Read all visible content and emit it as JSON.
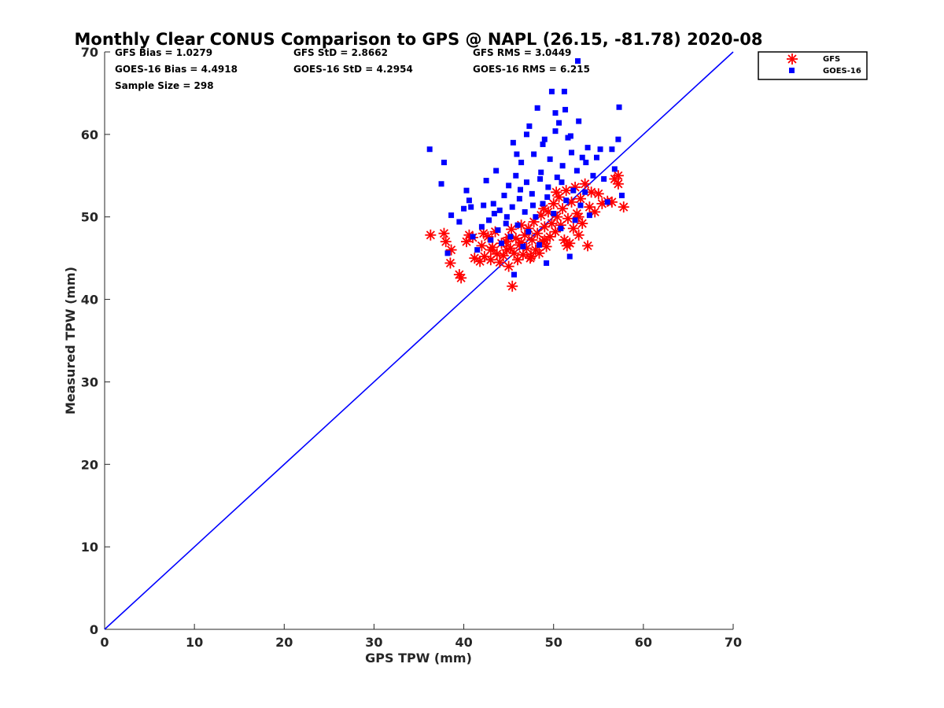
{
  "chart_data": {
    "type": "scatter",
    "title": "Monthly Clear CONUS Comparison to GPS @ NAPL (26.15, -81.78) 2020-08",
    "xlabel": "GPS TPW (mm)",
    "ylabel": "Measured TPW (mm)",
    "xlim": [
      0,
      70
    ],
    "ylim": [
      0,
      70
    ],
    "xticks": [
      "0",
      "10",
      "20",
      "30",
      "40",
      "50",
      "60",
      "70"
    ],
    "yticks": [
      "0",
      "10",
      "20",
      "30",
      "40",
      "50",
      "60",
      "70"
    ],
    "grid": false,
    "legend_position": "top-right outside",
    "stats": [
      [
        "GFS Bias = 1.0279",
        "GFS StD = 2.8662",
        "GFS RMS = 3.0449"
      ],
      [
        "GOES-16 Bias = 4.4918",
        "GOES-16 StD = 4.2954",
        "GOES-16 RMS = 6.215"
      ],
      [
        "Sample Size = 298"
      ]
    ],
    "reference_line": {
      "x": [
        0,
        70
      ],
      "y": [
        0,
        70
      ],
      "color": "#0000ff"
    },
    "series": [
      {
        "name": "GFS",
        "marker": "asterisk",
        "color": "#ff0000",
        "points": [
          [
            36.3,
            47.8
          ],
          [
            37.8,
            48.0
          ],
          [
            38.0,
            47.0
          ],
          [
            38.6,
            46.0
          ],
          [
            38.5,
            44.4
          ],
          [
            39.5,
            43.0
          ],
          [
            39.7,
            42.6
          ],
          [
            40.3,
            47.0
          ],
          [
            40.6,
            47.8
          ],
          [
            41.0,
            47.5
          ],
          [
            41.2,
            45.0
          ],
          [
            41.8,
            44.6
          ],
          [
            42.0,
            46.5
          ],
          [
            42.3,
            45.2
          ],
          [
            42.7,
            47.6
          ],
          [
            43.0,
            44.8
          ],
          [
            43.2,
            46.3
          ],
          [
            43.5,
            48.2
          ],
          [
            43.7,
            45.5
          ],
          [
            44.0,
            44.5
          ],
          [
            44.2,
            46.8
          ],
          [
            44.4,
            45.3
          ],
          [
            44.7,
            47.0
          ],
          [
            45.0,
            44.0
          ],
          [
            45.2,
            46.2
          ],
          [
            45.3,
            48.5
          ],
          [
            45.4,
            41.6
          ],
          [
            45.6,
            45.6
          ],
          [
            45.8,
            47.4
          ],
          [
            46.0,
            44.8
          ],
          [
            46.2,
            46.6
          ],
          [
            46.4,
            49.0
          ],
          [
            46.6,
            45.4
          ],
          [
            46.8,
            47.8
          ],
          [
            47.0,
            46.2
          ],
          [
            47.2,
            48.6
          ],
          [
            47.4,
            45.0
          ],
          [
            47.6,
            47.2
          ],
          [
            47.8,
            49.4
          ],
          [
            48.0,
            46.0
          ],
          [
            48.2,
            48.0
          ],
          [
            48.4,
            45.6
          ],
          [
            48.6,
            50.2
          ],
          [
            48.8,
            47.0
          ],
          [
            49.0,
            48.8
          ],
          [
            49.2,
            46.4
          ],
          [
            49.4,
            50.6
          ],
          [
            49.6,
            47.6
          ],
          [
            49.8,
            49.2
          ],
          [
            50.0,
            51.6
          ],
          [
            50.2,
            48.2
          ],
          [
            50.4,
            50.0
          ],
          [
            50.6,
            52.4
          ],
          [
            50.8,
            49.0
          ],
          [
            51.0,
            51.0
          ],
          [
            51.2,
            47.2
          ],
          [
            51.4,
            53.2
          ],
          [
            51.6,
            49.8
          ],
          [
            51.8,
            46.8
          ],
          [
            52.0,
            51.8
          ],
          [
            52.2,
            48.6
          ],
          [
            52.4,
            53.6
          ],
          [
            52.6,
            50.4
          ],
          [
            52.8,
            47.8
          ],
          [
            53.0,
            52.2
          ],
          [
            53.2,
            49.2
          ],
          [
            53.5,
            54.0
          ],
          [
            53.8,
            46.5
          ],
          [
            54.0,
            51.2
          ],
          [
            54.2,
            53.0
          ],
          [
            54.6,
            50.6
          ],
          [
            55.0,
            52.8
          ],
          [
            55.4,
            51.6
          ],
          [
            56.0,
            51.9
          ],
          [
            56.5,
            51.8
          ],
          [
            56.8,
            54.6
          ],
          [
            57.2,
            54.0
          ],
          [
            57.2,
            55.0
          ],
          [
            57.8,
            51.2
          ],
          [
            47.5,
            45.2
          ],
          [
            44.8,
            46.0
          ],
          [
            46.4,
            46.9
          ],
          [
            49.0,
            47.2
          ],
          [
            51.5,
            46.5
          ],
          [
            43.0,
            46.0
          ],
          [
            50.3,
            53.0
          ],
          [
            48.9,
            51.0
          ],
          [
            45.0,
            47.5
          ],
          [
            42.2,
            48.0
          ],
          [
            52.8,
            50.0
          ]
        ]
      },
      {
        "name": "GOES-16",
        "marker": "square",
        "color": "#0000ff",
        "points": [
          [
            36.2,
            58.2
          ],
          [
            37.5,
            54.0
          ],
          [
            37.8,
            56.6
          ],
          [
            38.2,
            45.6
          ],
          [
            38.6,
            50.2
          ],
          [
            39.5,
            49.4
          ],
          [
            40.0,
            51.0
          ],
          [
            40.3,
            53.2
          ],
          [
            40.6,
            52.0
          ],
          [
            41.0,
            47.6
          ],
          [
            41.5,
            46.0
          ],
          [
            42.0,
            48.8
          ],
          [
            42.2,
            51.4
          ],
          [
            42.5,
            54.4
          ],
          [
            42.8,
            49.6
          ],
          [
            43.0,
            47.2
          ],
          [
            43.3,
            51.6
          ],
          [
            43.6,
            55.6
          ],
          [
            43.8,
            48.4
          ],
          [
            44.0,
            50.8
          ],
          [
            44.2,
            46.8
          ],
          [
            44.5,
            52.6
          ],
          [
            44.7,
            49.2
          ],
          [
            45.0,
            53.8
          ],
          [
            45.2,
            47.6
          ],
          [
            45.4,
            51.2
          ],
          [
            45.5,
            59.0
          ],
          [
            45.6,
            43.0
          ],
          [
            45.8,
            55.0
          ],
          [
            46.0,
            49.0
          ],
          [
            46.2,
            52.2
          ],
          [
            46.4,
            56.6
          ],
          [
            46.6,
            46.4
          ],
          [
            46.8,
            50.6
          ],
          [
            47.0,
            54.2
          ],
          [
            47.2,
            48.2
          ],
          [
            47.3,
            61.0
          ],
          [
            47.6,
            52.8
          ],
          [
            47.8,
            57.6
          ],
          [
            48.0,
            50.0
          ],
          [
            48.2,
            63.2
          ],
          [
            48.4,
            46.6
          ],
          [
            48.6,
            55.4
          ],
          [
            48.8,
            51.6
          ],
          [
            49.0,
            59.4
          ],
          [
            49.2,
            44.4
          ],
          [
            49.4,
            53.6
          ],
          [
            49.6,
            57.0
          ],
          [
            49.8,
            65.2
          ],
          [
            50.0,
            50.4
          ],
          [
            50.2,
            60.4
          ],
          [
            50.4,
            54.8
          ],
          [
            50.6,
            61.4
          ],
          [
            50.8,
            48.6
          ],
          [
            51.0,
            56.2
          ],
          [
            51.2,
            65.2
          ],
          [
            51.4,
            52.0
          ],
          [
            51.6,
            59.6
          ],
          [
            51.8,
            45.2
          ],
          [
            52.0,
            57.8
          ],
          [
            52.2,
            53.2
          ],
          [
            52.4,
            49.6
          ],
          [
            52.6,
            55.6
          ],
          [
            52.8,
            61.6
          ],
          [
            53.0,
            51.4
          ],
          [
            53.2,
            57.2
          ],
          [
            53.5,
            53.0
          ],
          [
            53.8,
            58.4
          ],
          [
            54.0,
            50.2
          ],
          [
            54.4,
            55.0
          ],
          [
            54.8,
            57.2
          ],
          [
            55.2,
            58.2
          ],
          [
            55.6,
            54.6
          ],
          [
            56.0,
            51.8
          ],
          [
            56.5,
            58.2
          ],
          [
            56.8,
            55.8
          ],
          [
            57.2,
            59.4
          ],
          [
            57.3,
            63.3
          ],
          [
            57.6,
            52.6
          ],
          [
            52.7,
            68.9
          ],
          [
            51.3,
            63.0
          ],
          [
            50.2,
            62.6
          ],
          [
            47.0,
            60.0
          ],
          [
            48.8,
            58.8
          ],
          [
            44.8,
            50.0
          ],
          [
            46.3,
            53.3
          ],
          [
            47.7,
            51.4
          ],
          [
            49.3,
            52.4
          ],
          [
            50.9,
            54.2
          ],
          [
            53.6,
            56.6
          ],
          [
            43.4,
            50.4
          ],
          [
            45.9,
            57.6
          ],
          [
            48.5,
            54.6
          ],
          [
            51.9,
            59.8
          ],
          [
            40.8,
            51.2
          ]
        ]
      }
    ]
  }
}
